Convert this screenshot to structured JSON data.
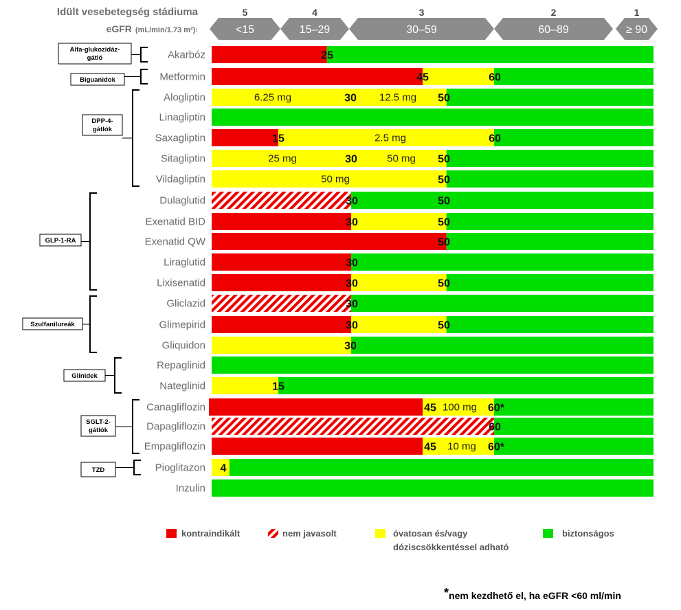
{
  "header": {
    "title": "Idült vesebetegség stádiuma",
    "egfr_label": "eGFR",
    "egfr_unit": "(mL/min/1.73 m²):"
  },
  "colors": {
    "red": "#ee0000",
    "yellow": "#ffff00",
    "green": "#00dd00",
    "arrow": "#8c8c8c"
  },
  "chart_data": {
    "type": "bar",
    "title": "Idült vesebetegség stádiuma",
    "x_axis": {
      "label": "eGFR (mL/min/1.73 m²)",
      "stages": [
        {
          "stage": "5",
          "range": "<15",
          "from": 0,
          "to": 15
        },
        {
          "stage": "4",
          "range": "15–29",
          "from": 15,
          "to": 30
        },
        {
          "stage": "3",
          "range": "30–59",
          "from": 30,
          "to": 60
        },
        {
          "stage": "2",
          "range": "60–89",
          "from": 60,
          "to": 90
        },
        {
          "stage": "1",
          "range": "≥ 90",
          "from": 90,
          "to": 105
        }
      ]
    },
    "legend": [
      {
        "key": "red",
        "label": "kontraindikált"
      },
      {
        "key": "hatch",
        "label": "nem javasolt"
      },
      {
        "key": "yellow",
        "label": "óvatosan és/vagy",
        "label2": "dóziscsökkentéssel adható"
      },
      {
        "key": "green",
        "label": "biztonságos"
      }
    ],
    "classes": [
      {
        "name": "Alfa-glukozidáz-",
        "name2": "gátló",
        "first": 0,
        "last": 0
      },
      {
        "name": "Biguanidok",
        "first": 1,
        "last": 1
      },
      {
        "name": "DPP-4-",
        "name2": "gátlók",
        "first": 2,
        "last": 6
      },
      {
        "name": "GLP-1-RA",
        "first": 7,
        "last": 11
      },
      {
        "name": "Szulfanilureák",
        "first": 12,
        "last": 14
      },
      {
        "name": "Glinidek",
        "first": 15,
        "last": 16
      },
      {
        "name": "SGLT-2-",
        "name2": "gátlók",
        "first": 17,
        "last": 19
      },
      {
        "name": "TZD",
        "first": 20,
        "last": 20
      }
    ],
    "drugs": [
      {
        "name": "Akarbóz",
        "segments": [
          {
            "from": 0,
            "to": 25,
            "color": "red"
          },
          {
            "from": 25,
            "to": 105,
            "color": "green"
          }
        ],
        "thresholds": [
          "25"
        ],
        "doses": []
      },
      {
        "name": "Metformin",
        "segments": [
          {
            "from": 0,
            "to": 45,
            "color": "red"
          },
          {
            "from": 45,
            "to": 60,
            "color": "yellow"
          },
          {
            "from": 60,
            "to": 105,
            "color": "green"
          }
        ],
        "thresholds": [
          "45",
          "60"
        ],
        "doses": []
      },
      {
        "name": "Alogliptin",
        "segments": [
          {
            "from": 0,
            "to": 50,
            "color": "yellow"
          },
          {
            "from": 50,
            "to": 105,
            "color": "green"
          }
        ],
        "thresholds": [
          "30",
          "50"
        ],
        "doses": [
          "6.25 mg",
          "12.5 mg"
        ]
      },
      {
        "name": "Linagliptin",
        "segments": [
          {
            "from": 0,
            "to": 105,
            "color": "green"
          }
        ],
        "thresholds": [],
        "doses": []
      },
      {
        "name": "Saxagliptin",
        "segments": [
          {
            "from": 0,
            "to": 15,
            "color": "red"
          },
          {
            "from": 15,
            "to": 60,
            "color": "yellow"
          },
          {
            "from": 60,
            "to": 105,
            "color": "green"
          }
        ],
        "thresholds": [
          "15",
          "60"
        ],
        "doses": [
          "2.5 mg"
        ]
      },
      {
        "name": "Sitagliptin",
        "segments": [
          {
            "from": 0,
            "to": 50,
            "color": "yellow"
          },
          {
            "from": 50,
            "to": 105,
            "color": "green"
          }
        ],
        "thresholds": [
          "30",
          "50"
        ],
        "doses": [
          "25 mg",
          "50 mg"
        ]
      },
      {
        "name": "Vildagliptin",
        "segments": [
          {
            "from": 0,
            "to": 50,
            "color": "yellow"
          },
          {
            "from": 50,
            "to": 105,
            "color": "green"
          }
        ],
        "thresholds": [
          "50"
        ],
        "doses": [
          "50 mg"
        ]
      },
      {
        "name": "Dulaglutid",
        "segments": [
          {
            "from": 0,
            "to": 30,
            "color": "hatch"
          },
          {
            "from": 30,
            "to": 105,
            "color": "green"
          }
        ],
        "thresholds": [
          "30",
          "50"
        ],
        "doses": []
      },
      {
        "name": "Exenatid BID",
        "segments": [
          {
            "from": 0,
            "to": 30,
            "color": "red"
          },
          {
            "from": 30,
            "to": 50,
            "color": "yellow"
          },
          {
            "from": 50,
            "to": 105,
            "color": "green"
          }
        ],
        "thresholds": [
          "30",
          "50"
        ],
        "doses": []
      },
      {
        "name": "Exenatid QW",
        "segments": [
          {
            "from": 0,
            "to": 50,
            "color": "red"
          },
          {
            "from": 50,
            "to": 105,
            "color": "green"
          }
        ],
        "thresholds": [
          "50"
        ],
        "doses": []
      },
      {
        "name": "Liraglutid",
        "segments": [
          {
            "from": 0,
            "to": 30,
            "color": "red"
          },
          {
            "from": 30,
            "to": 105,
            "color": "green"
          }
        ],
        "thresholds": [
          "30"
        ],
        "doses": []
      },
      {
        "name": "Lixisenatid",
        "segments": [
          {
            "from": 0,
            "to": 30,
            "color": "red"
          },
          {
            "from": 30,
            "to": 50,
            "color": "yellow"
          },
          {
            "from": 50,
            "to": 105,
            "color": "green"
          }
        ],
        "thresholds": [
          "30",
          "50"
        ],
        "doses": []
      },
      {
        "name": "Gliclazid",
        "segments": [
          {
            "from": 0,
            "to": 30,
            "color": "hatch"
          },
          {
            "from": 30,
            "to": 105,
            "color": "green"
          }
        ],
        "thresholds": [
          "30"
        ],
        "doses": []
      },
      {
        "name": "Glimepirid",
        "segments": [
          {
            "from": 0,
            "to": 30,
            "color": "red"
          },
          {
            "from": 30,
            "to": 50,
            "color": "yellow"
          },
          {
            "from": 50,
            "to": 105,
            "color": "green"
          }
        ],
        "thresholds": [
          "30",
          "50"
        ],
        "doses": []
      },
      {
        "name": "Gliquidon",
        "segments": [
          {
            "from": 0,
            "to": 30,
            "color": "yellow"
          },
          {
            "from": 30,
            "to": 105,
            "color": "green"
          }
        ],
        "thresholds": [
          "30"
        ],
        "doses": []
      },
      {
        "name": "Repaglinid",
        "segments": [
          {
            "from": 0,
            "to": 105,
            "color": "green"
          }
        ],
        "thresholds": [],
        "doses": []
      },
      {
        "name": "Nateglinid",
        "segments": [
          {
            "from": 0,
            "to": 15,
            "color": "yellow"
          },
          {
            "from": 15,
            "to": 105,
            "color": "green"
          }
        ],
        "thresholds": [
          "15"
        ],
        "doses": []
      },
      {
        "name": "Canagliflozin",
        "segments": [
          {
            "from": 0,
            "to": 45,
            "color": "red"
          },
          {
            "from": 45,
            "to": 60,
            "color": "yellow"
          },
          {
            "from": 60,
            "to": 105,
            "color": "green"
          }
        ],
        "thresholds": [
          "45",
          "60*"
        ],
        "doses": [
          "100 mg"
        ]
      },
      {
        "name": "Dapagliflozin",
        "segments": [
          {
            "from": 0,
            "to": 60,
            "color": "hatch"
          },
          {
            "from": 60,
            "to": 105,
            "color": "green"
          }
        ],
        "thresholds": [
          "60"
        ],
        "doses": []
      },
      {
        "name": "Empagliflozin",
        "segments": [
          {
            "from": 0,
            "to": 45,
            "color": "red"
          },
          {
            "from": 45,
            "to": 60,
            "color": "yellow"
          },
          {
            "from": 60,
            "to": 105,
            "color": "green"
          }
        ],
        "thresholds": [
          "45",
          "60*"
        ],
        "doses": [
          "10 mg"
        ]
      },
      {
        "name": "Pioglitazon",
        "segments": [
          {
            "from": 0,
            "to": 4,
            "color": "yellow"
          },
          {
            "from": 4,
            "to": 105,
            "color": "green"
          }
        ],
        "thresholds": [
          "4"
        ],
        "doses": []
      },
      {
        "name": "Inzulin",
        "segments": [
          {
            "from": 0,
            "to": 105,
            "color": "green"
          }
        ],
        "thresholds": [],
        "doses": []
      }
    ]
  },
  "footnote": {
    "mark": "*",
    "text": "nem kezdhető el, ha eGFR <60 ml/min"
  }
}
